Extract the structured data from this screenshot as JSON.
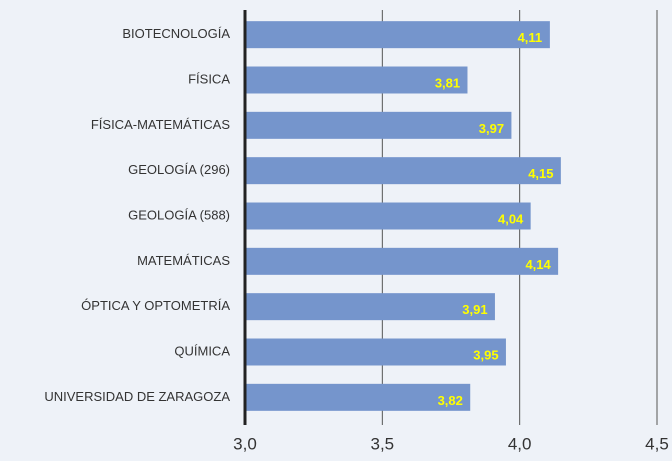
{
  "chart_data": {
    "type": "bar",
    "orientation": "horizontal",
    "categories": [
      "BIOTECNOLOGÍA",
      "FÍSICA",
      "FÍSICA-MATEMÁTICAS",
      "GEOLOGÍA (296)",
      "GEOLOGÍA (588)",
      "MATEMÁTICAS",
      "ÓPTICA Y OPTOMETRÍA",
      "QUÍMICA",
      "UNIVERSIDAD DE ZARAGOZA"
    ],
    "values": [
      4.11,
      3.81,
      3.97,
      4.15,
      4.04,
      4.14,
      3.91,
      3.95,
      3.82
    ],
    "value_labels": [
      "4,11",
      "3,81",
      "3,97",
      "4,15",
      "4,04",
      "4,14",
      "3,91",
      "3,95",
      "3,82"
    ],
    "color": "#7595cc",
    "xlim": [
      3.0,
      4.5
    ],
    "xticks": [
      {
        "value": 3.0,
        "label": "3,0"
      },
      {
        "value": 3.5,
        "label": "3,5"
      },
      {
        "value": 4.0,
        "label": "4,0"
      },
      {
        "value": 4.5,
        "label": "4,5"
      }
    ],
    "grid": true
  }
}
